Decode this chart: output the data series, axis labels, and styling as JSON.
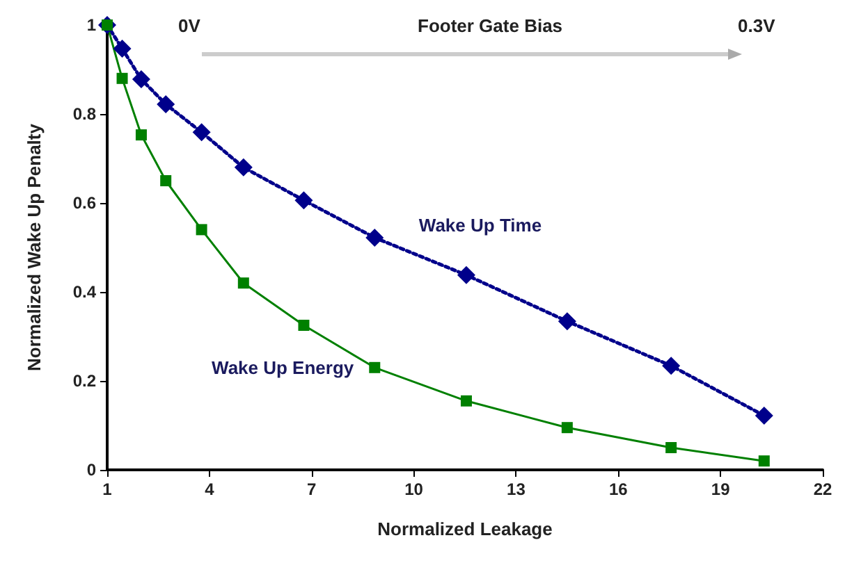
{
  "chart_data": {
    "type": "line",
    "xlabel": "Normalized Leakage",
    "ylabel": "Normalized Wake Up Penalty",
    "x": [
      1,
      1.44,
      2.0,
      2.72,
      3.77,
      5.0,
      6.77,
      8.85,
      11.54,
      14.5,
      17.55,
      20.28
    ],
    "series": [
      {
        "name": "Wake Up Time",
        "color": "#00008b",
        "marker": "diamond",
        "line_style": "dotted",
        "values": [
          1,
          0.947,
          0.878,
          0.822,
          0.759,
          0.68,
          0.606,
          0.522,
          0.438,
          0.334,
          0.234,
          0.122
        ]
      },
      {
        "name": "Wake Up Energy",
        "color": "#008000",
        "marker": "square",
        "line_style": "solid",
        "values": [
          1,
          0.88,
          0.753,
          0.65,
          0.54,
          0.42,
          0.325,
          0.23,
          0.155,
          0.095,
          0.05,
          0.02
        ]
      }
    ],
    "xlim": [
      1,
      22
    ],
    "xticks": [
      1,
      4,
      7,
      10,
      13,
      16,
      19,
      22
    ],
    "ylim": [
      0,
      1
    ],
    "yticks": [
      0,
      0.2,
      0.4,
      0.6,
      0.8,
      1
    ],
    "grid": false,
    "legend": false,
    "annotations": [
      "0V",
      "Footer Gate Bias",
      "0.3V"
    ]
  }
}
